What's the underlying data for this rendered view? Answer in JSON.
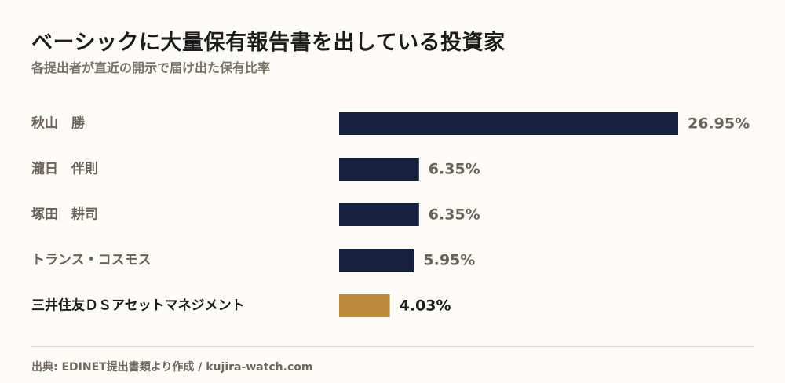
{
  "title": "ベーシックに大量保有報告書を出している投資家",
  "subtitle": "各提出者が直近の開示で届け出た保有比率",
  "source": "出典: EDINET提出書類より作成 / kujira-watch.com",
  "colors": {
    "bar_default": "#16213d",
    "bar_highlight": "#bb8a3e",
    "label_default": "#6a625b",
    "label_highlight": "#1c1c1c",
    "value_default": "#6a625b",
    "value_highlight": "#1c1c1c"
  },
  "chart_data": {
    "type": "bar",
    "orientation": "horizontal",
    "categories": [
      "秋山　勝",
      "瀧日　伴則",
      "塚田　耕司",
      "トランス・コスモス",
      "三井住友ＤＳアセットマネジメント"
    ],
    "values": [
      26.95,
      6.35,
      6.35,
      5.95,
      4.03
    ],
    "value_labels": [
      "26.95%",
      "6.35%",
      "6.35%",
      "5.95%",
      "4.03%"
    ],
    "highlight_index": 4,
    "xlim": [
      0,
      26.95
    ],
    "grid": false,
    "legend": "none",
    "title": "ベーシックに大量保有報告書を出している投資家",
    "xlabel": "",
    "ylabel": ""
  }
}
